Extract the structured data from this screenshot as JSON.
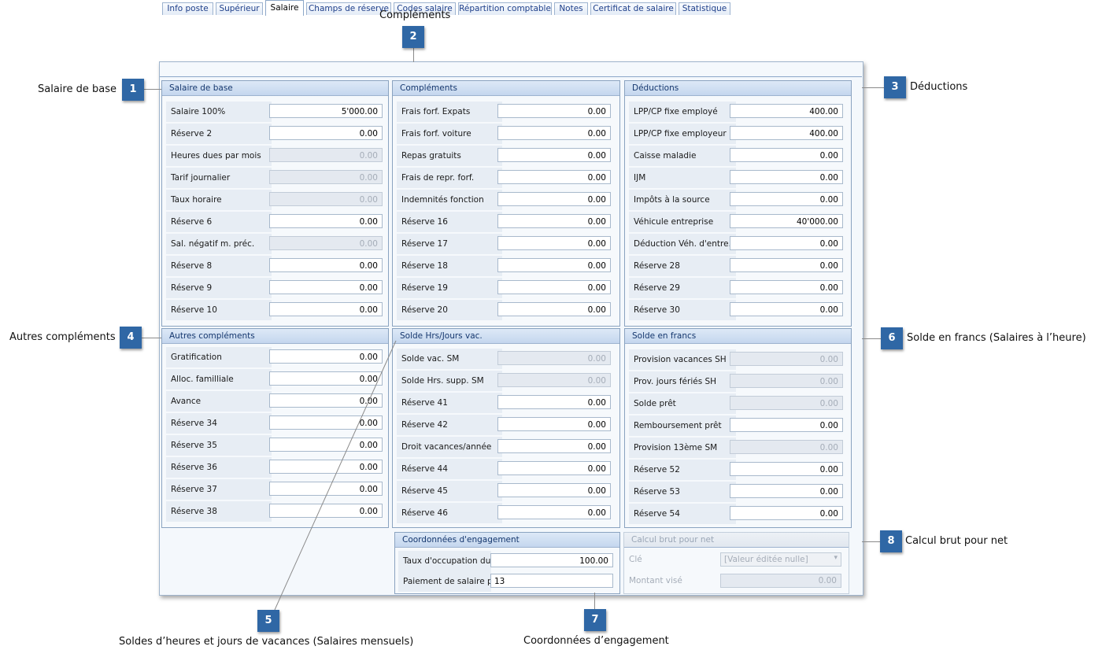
{
  "tabs": [
    {
      "label": "Info poste"
    },
    {
      "label": "Supérieur"
    },
    {
      "label": "Salaire"
    },
    {
      "label": "Champs de réserve"
    },
    {
      "label": "Codes salaire"
    },
    {
      "label": "Répartition comptable"
    },
    {
      "label": "Notes"
    },
    {
      "label": "Certificat de salaire"
    },
    {
      "label": "Statistique"
    }
  ],
  "salaire_de_base": {
    "title": "Salaire de base",
    "rows": [
      {
        "label": "Salaire 100%",
        "value": "5'000.00"
      },
      {
        "label": "Réserve 2",
        "value": "0.00"
      },
      {
        "label": "Heures dues par mois",
        "value": "0.00"
      },
      {
        "label": "Tarif journalier",
        "value": "0.00"
      },
      {
        "label": "Taux horaire",
        "value": "0.00"
      },
      {
        "label": "Réserve 6",
        "value": "0.00"
      },
      {
        "label": "Sal. négatif m. préc.",
        "value": "0.00"
      },
      {
        "label": "Réserve 8",
        "value": "0.00"
      },
      {
        "label": "Réserve 9",
        "value": "0.00"
      },
      {
        "label": "Réserve 10",
        "value": "0.00"
      }
    ]
  },
  "complements": {
    "title": "Compléments",
    "rows": [
      {
        "label": "Frais forf. Expats",
        "value": "0.00"
      },
      {
        "label": "Frais forf. voiture",
        "value": "0.00"
      },
      {
        "label": "Repas gratuits",
        "value": "0.00"
      },
      {
        "label": "Frais de repr. forf.",
        "value": "0.00"
      },
      {
        "label": "Indemnités fonction",
        "value": "0.00"
      },
      {
        "label": "Réserve 16",
        "value": "0.00"
      },
      {
        "label": "Réserve 17",
        "value": "0.00"
      },
      {
        "label": "Réserve 18",
        "value": "0.00"
      },
      {
        "label": "Réserve 19",
        "value": "0.00"
      },
      {
        "label": "Réserve 20",
        "value": "0.00"
      }
    ]
  },
  "deductions": {
    "title": "Déductions",
    "rows": [
      {
        "label": "LPP/CP fixe employé",
        "value": "400.00"
      },
      {
        "label": "LPP/CP fixe employeur",
        "value": "400.00"
      },
      {
        "label": "Caisse maladie",
        "value": "0.00"
      },
      {
        "label": "IJM",
        "value": "0.00"
      },
      {
        "label": "Impôts à la source",
        "value": "0.00"
      },
      {
        "label": "Véhicule entreprise",
        "value": "40'000.00"
      },
      {
        "label": "Déduction Véh. d'entre.",
        "value": "0.00"
      },
      {
        "label": "Réserve 28",
        "value": "0.00"
      },
      {
        "label": "Réserve 29",
        "value": "0.00"
      },
      {
        "label": "Réserve 30",
        "value": "0.00"
      }
    ]
  },
  "autres_complements": {
    "title": "Autres compléments",
    "rows": [
      {
        "label": "Gratification",
        "value": "0.00"
      },
      {
        "label": "Alloc. familliale",
        "value": "0.00"
      },
      {
        "label": "Avance",
        "value": "0.00"
      },
      {
        "label": "Réserve 34",
        "value": "0.00"
      },
      {
        "label": "Réserve 35",
        "value": "0.00"
      },
      {
        "label": "Réserve 36",
        "value": "0.00"
      },
      {
        "label": "Réserve 37",
        "value": "0.00"
      },
      {
        "label": "Réserve 38",
        "value": "0.00"
      }
    ]
  },
  "solde_hrs": {
    "title": "Solde Hrs/Jours vac.",
    "rows": [
      {
        "label": "Solde vac. SM",
        "value": "0.00"
      },
      {
        "label": "Solde Hrs. supp. SM",
        "value": "0.00"
      },
      {
        "label": "Réserve 41",
        "value": "0.00"
      },
      {
        "label": "Réserve 42",
        "value": "0.00"
      },
      {
        "label": "Droit vacances/année",
        "value": "0.00"
      },
      {
        "label": "Réserve 44",
        "value": "0.00"
      },
      {
        "label": "Réserve 45",
        "value": "0.00"
      },
      {
        "label": "Réserve 46",
        "value": "0.00"
      }
    ]
  },
  "solde_francs": {
    "title": "Solde en francs",
    "rows": [
      {
        "label": "Provision vacances SH",
        "value": "0.00"
      },
      {
        "label": "Prov. jours fériés SH",
        "value": "0.00"
      },
      {
        "label": "Solde prêt",
        "value": "0.00"
      },
      {
        "label": "Remboursement prêt",
        "value": "0.00"
      },
      {
        "label": "Provision 13ème SM",
        "value": "0.00"
      },
      {
        "label": "Réserve 52",
        "value": "0.00"
      },
      {
        "label": "Réserve 53",
        "value": "0.00"
      },
      {
        "label": "Réserve 54",
        "value": "0.00"
      }
    ]
  },
  "coordonnees": {
    "title": "Coordonnées d'engagement",
    "rows": [
      {
        "label": "Taux d'occupation du po",
        "value": "100.00"
      },
      {
        "label": "Paiement de salaire par",
        "value": "13"
      }
    ]
  },
  "calcul": {
    "title": "Calcul brut pour net",
    "cle_label": "Clé",
    "cle_value": "[Valeur éditée nulle]",
    "montant_label": "Montant visé",
    "montant_value": "0.00"
  },
  "callouts": [
    {
      "num": "1",
      "text": "Salaire de base"
    },
    {
      "num": "2",
      "text": "Compléments"
    },
    {
      "num": "3",
      "text": "Déductions"
    },
    {
      "num": "4",
      "text": "Autres compléments"
    },
    {
      "num": "5",
      "text": "Soldes d’heures et jours de vacances (Salaires mensuels)"
    },
    {
      "num": "6",
      "text": "Solde en francs (Salaires à l’heure)"
    },
    {
      "num": "7",
      "text": "Coordonnées d’engagement"
    },
    {
      "num": "8",
      "text": "Calcul brut pour net"
    }
  ],
  "readonly": {
    "salaire_de_base": [
      2,
      3,
      4,
      6
    ],
    "solde_hrs": [
      0,
      1
    ],
    "solde_francs": [
      0,
      1,
      2,
      4
    ]
  }
}
